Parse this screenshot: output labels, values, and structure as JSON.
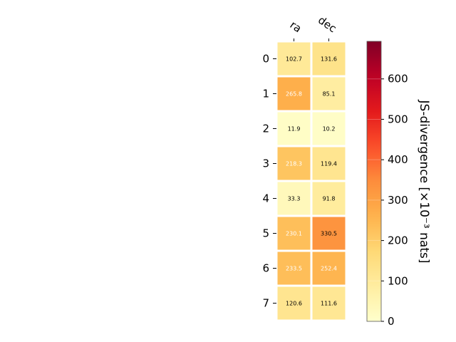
{
  "chart_data": {
    "type": "heatmap",
    "columns": [
      "ra",
      "dec"
    ],
    "rows": [
      "0",
      "1",
      "2",
      "3",
      "4",
      "5",
      "6",
      "7"
    ],
    "values": [
      [
        102.7,
        131.6
      ],
      [
        265.8,
        85.1
      ],
      [
        11.9,
        10.2
      ],
      [
        218.3,
        119.4
      ],
      [
        33.3,
        91.8
      ],
      [
        230.1,
        330.5
      ],
      [
        233.5,
        252.4
      ],
      [
        120.6,
        111.6
      ]
    ],
    "colorbar": {
      "label": "JS-divergence [×10⁻³ nats]",
      "min": 0,
      "max": 693,
      "ticks": [
        "0",
        "100",
        "200",
        "300",
        "400",
        "500",
        "600"
      ],
      "colormap": "YlOrRd"
    },
    "colors": {
      "low": "#ffffcc",
      "high": "#800026"
    }
  }
}
